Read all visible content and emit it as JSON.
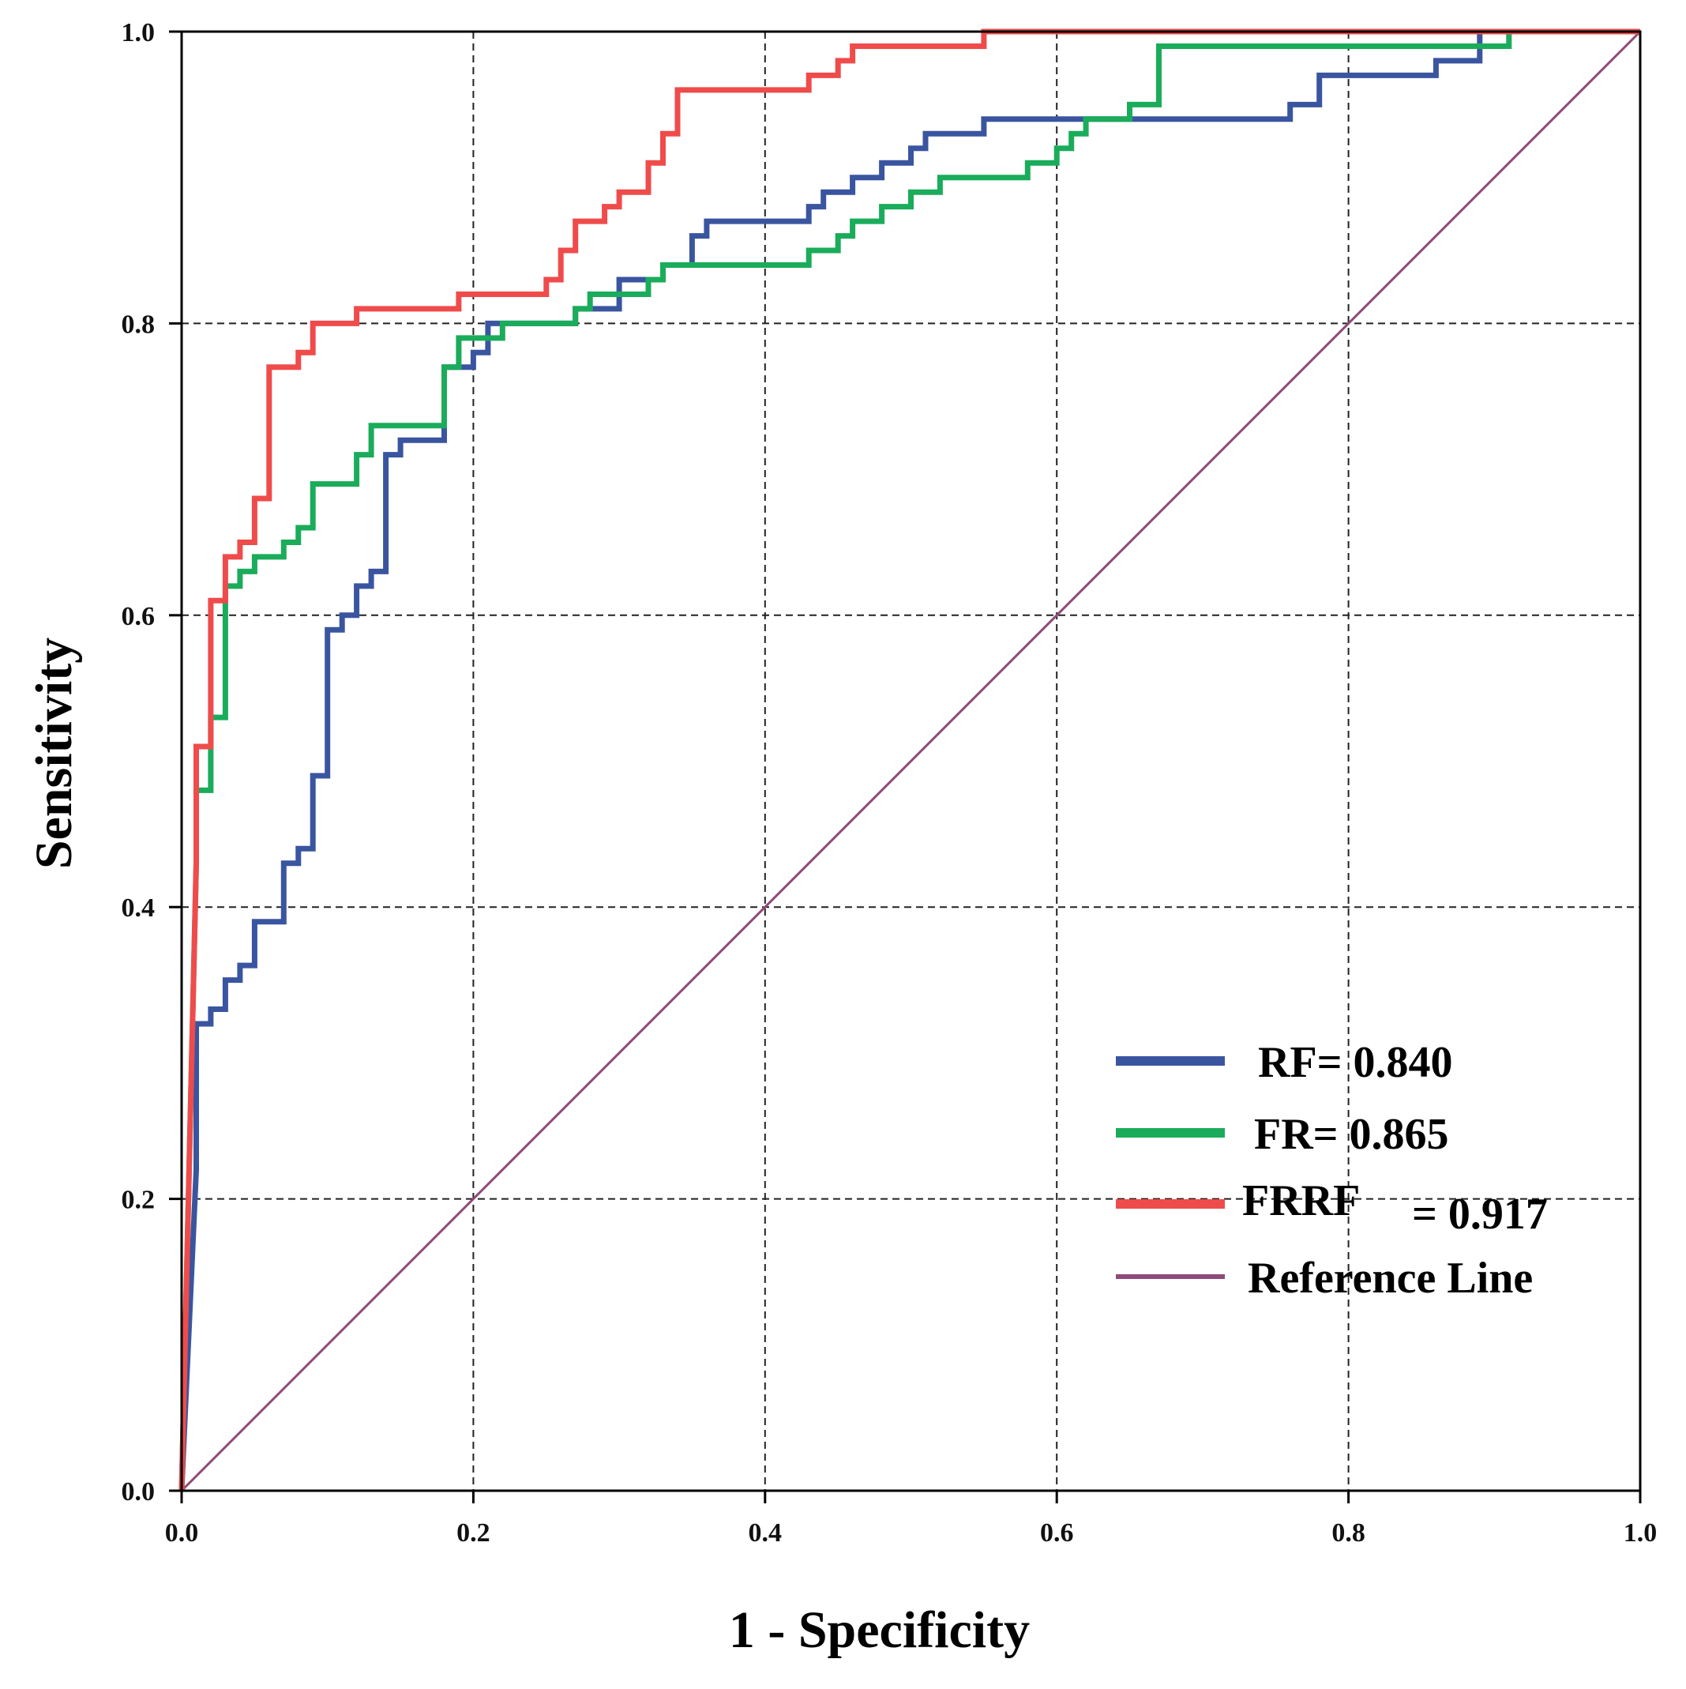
{
  "chart_data": {
    "type": "line",
    "title": "",
    "xlabel": "1 - Specificity",
    "ylabel": "Sensitivity",
    "xlim": [
      0,
      1
    ],
    "ylim": [
      0,
      1
    ],
    "grid": true,
    "legend_position": "bottom-right",
    "x_ticks": [
      "0.0",
      "0.2",
      "0.4",
      "0.6",
      "0.8",
      "1.0"
    ],
    "y_ticks": [
      "0.0",
      "0.2",
      "0.4",
      "0.6",
      "0.8",
      "1.0"
    ],
    "series": [
      {
        "name": "RF",
        "legend_label": "RF= 0.840",
        "color": "#3a55a0",
        "x": [
          0,
          0.01,
          0.01,
          0.02,
          0.02,
          0.03,
          0.03,
          0.04,
          0.04,
          0.05,
          0.05,
          0.07,
          0.07,
          0.08,
          0.08,
          0.09,
          0.09,
          0.1,
          0.1,
          0.11,
          0.11,
          0.12,
          0.12,
          0.13,
          0.13,
          0.14,
          0.14,
          0.15,
          0.15,
          0.16,
          0.16,
          0.18,
          0.18,
          0.2,
          0.2,
          0.21,
          0.21,
          0.23,
          0.23,
          0.27,
          0.27,
          0.3,
          0.3,
          0.33,
          0.33,
          0.35,
          0.35,
          0.36,
          0.36,
          0.43,
          0.43,
          0.44,
          0.44,
          0.46,
          0.46,
          0.48,
          0.48,
          0.5,
          0.5,
          0.51,
          0.51,
          0.55,
          0.55,
          0.76,
          0.76,
          0.78,
          0.78,
          0.86,
          0.86,
          0.89,
          0.89,
          1.0
        ],
        "y": [
          0,
          0.22,
          0.32,
          0.32,
          0.33,
          0.33,
          0.35,
          0.35,
          0.36,
          0.36,
          0.39,
          0.39,
          0.43,
          0.43,
          0.44,
          0.44,
          0.49,
          0.49,
          0.59,
          0.59,
          0.6,
          0.6,
          0.62,
          0.62,
          0.63,
          0.63,
          0.71,
          0.71,
          0.72,
          0.72,
          0.72,
          0.72,
          0.77,
          0.77,
          0.78,
          0.78,
          0.8,
          0.8,
          0.8,
          0.8,
          0.81,
          0.81,
          0.83,
          0.83,
          0.84,
          0.84,
          0.86,
          0.86,
          0.87,
          0.87,
          0.88,
          0.88,
          0.89,
          0.89,
          0.9,
          0.9,
          0.91,
          0.91,
          0.92,
          0.92,
          0.93,
          0.93,
          0.94,
          0.94,
          0.95,
          0.95,
          0.97,
          0.97,
          0.98,
          0.98,
          1.0,
          1.0
        ]
      },
      {
        "name": "FR",
        "legend_label": "FR= 0.865",
        "color": "#1aac5a",
        "x": [
          0,
          0.01,
          0.01,
          0.02,
          0.02,
          0.03,
          0.03,
          0.04,
          0.04,
          0.05,
          0.05,
          0.07,
          0.07,
          0.08,
          0.08,
          0.09,
          0.09,
          0.12,
          0.12,
          0.13,
          0.13,
          0.18,
          0.18,
          0.19,
          0.19,
          0.22,
          0.22,
          0.27,
          0.27,
          0.28,
          0.28,
          0.32,
          0.32,
          0.33,
          0.33,
          0.43,
          0.43,
          0.45,
          0.45,
          0.46,
          0.46,
          0.48,
          0.48,
          0.5,
          0.5,
          0.52,
          0.52,
          0.58,
          0.58,
          0.6,
          0.6,
          0.61,
          0.61,
          0.62,
          0.62,
          0.65,
          0.65,
          0.67,
          0.67,
          0.86,
          0.86,
          0.91,
          0.91,
          1.0
        ],
        "y": [
          0,
          0.43,
          0.48,
          0.48,
          0.53,
          0.53,
          0.62,
          0.62,
          0.63,
          0.63,
          0.64,
          0.64,
          0.65,
          0.65,
          0.66,
          0.66,
          0.69,
          0.69,
          0.71,
          0.71,
          0.73,
          0.73,
          0.77,
          0.77,
          0.79,
          0.79,
          0.8,
          0.8,
          0.81,
          0.81,
          0.82,
          0.82,
          0.83,
          0.83,
          0.84,
          0.84,
          0.85,
          0.85,
          0.86,
          0.86,
          0.87,
          0.87,
          0.88,
          0.88,
          0.89,
          0.89,
          0.9,
          0.9,
          0.91,
          0.91,
          0.92,
          0.92,
          0.93,
          0.93,
          0.94,
          0.94,
          0.95,
          0.95,
          0.99,
          0.99,
          0.99,
          0.99,
          1.0,
          1.0
        ]
      },
      {
        "name": "FRRF",
        "legend_label": "FRRF",
        "legend_value": "= 0.917",
        "color": "#f04b4b",
        "x": [
          0,
          0.01,
          0.01,
          0.02,
          0.02,
          0.03,
          0.03,
          0.04,
          0.04,
          0.05,
          0.05,
          0.06,
          0.06,
          0.08,
          0.08,
          0.09,
          0.09,
          0.12,
          0.12,
          0.19,
          0.19,
          0.25,
          0.25,
          0.26,
          0.26,
          0.27,
          0.27,
          0.29,
          0.29,
          0.3,
          0.3,
          0.32,
          0.32,
          0.33,
          0.33,
          0.34,
          0.34,
          0.43,
          0.43,
          0.45,
          0.45,
          0.46,
          0.46,
          0.55,
          0.55,
          0.64,
          0.64,
          1.0
        ],
        "y": [
          0,
          0.43,
          0.51,
          0.51,
          0.61,
          0.61,
          0.64,
          0.64,
          0.65,
          0.65,
          0.68,
          0.68,
          0.77,
          0.77,
          0.78,
          0.78,
          0.8,
          0.8,
          0.81,
          0.81,
          0.82,
          0.82,
          0.83,
          0.83,
          0.85,
          0.85,
          0.87,
          0.87,
          0.88,
          0.88,
          0.89,
          0.89,
          0.91,
          0.91,
          0.93,
          0.93,
          0.96,
          0.96,
          0.97,
          0.97,
          0.98,
          0.98,
          0.99,
          0.99,
          1.0,
          1.0,
          1.0,
          1.0
        ]
      },
      {
        "name": "Reference Line",
        "legend_label": "Reference Line",
        "color": "#8e4a7a",
        "x": [
          0,
          1
        ],
        "y": [
          0,
          1
        ]
      }
    ]
  }
}
